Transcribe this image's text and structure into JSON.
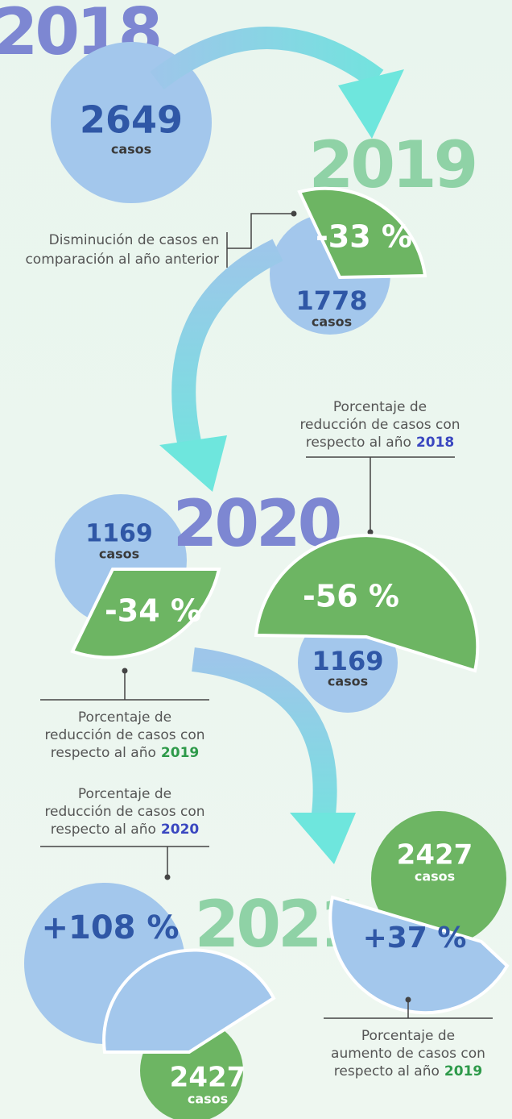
{
  "years": [
    "2018",
    "2019",
    "2020",
    "2021"
  ],
  "y2018": {
    "count": "2649",
    "unit": "casos"
  },
  "y2019": {
    "change": "-33 %",
    "count": "1778",
    "unit": "casos",
    "note": [
      "Disminución de casos en",
      "comparación al año anterior"
    ]
  },
  "y2020": {
    "left": {
      "count": "1169",
      "unit": "casos",
      "change": "-34 %"
    },
    "right": {
      "change": "-56 %",
      "count": "1169",
      "unit": "casos"
    },
    "note_right": {
      "lines": [
        "Porcentaje de",
        "reducción de casos con",
        "respecto al año"
      ],
      "ref": "2018"
    },
    "note_left": {
      "lines": [
        "Porcentaje de",
        "reducción de casos con",
        "respecto al año"
      ],
      "ref": "2019"
    }
  },
  "y2021": {
    "left": {
      "change": "+108 %",
      "count": "2427",
      "unit": "casos"
    },
    "right": {
      "count": "2427",
      "unit": "casos",
      "change": "+37 %"
    },
    "note_left": {
      "lines": [
        "Porcentaje de",
        "reducción de casos con",
        "respecto al año"
      ],
      "ref": "2020"
    },
    "note_right": {
      "lines": [
        "Porcentaje de",
        "aumento de casos con",
        "respecto al año"
      ],
      "ref": "2019"
    }
  }
}
